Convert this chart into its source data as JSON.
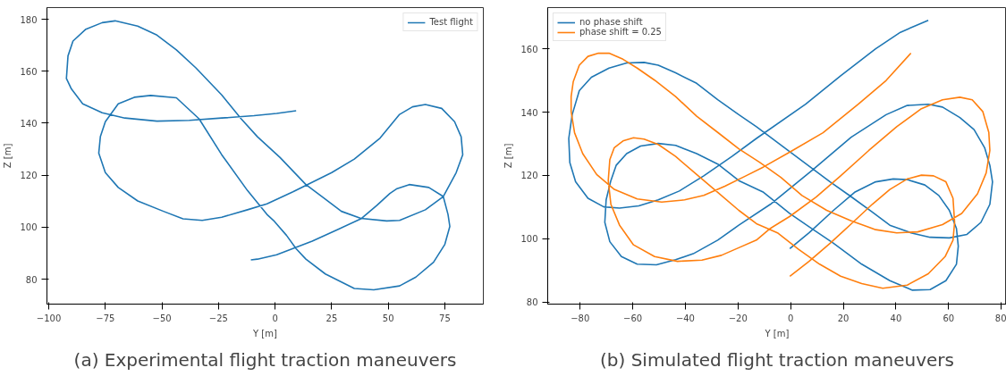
{
  "chart_data": [
    {
      "type": "line",
      "xlabel": "Y [m]",
      "ylabel": "Z [m]",
      "legend": "top right",
      "grid": false,
      "xlim": [
        -100.8,
        92
      ],
      "ylim": [
        70.4,
        184.5
      ],
      "xticks": [
        {
          "value": -100,
          "label": "−100"
        },
        {
          "value": -75,
          "label": "−75"
        },
        {
          "value": -50,
          "label": "−50"
        },
        {
          "value": -25,
          "label": "−25"
        },
        0,
        25,
        50,
        75
      ],
      "yticks": [
        80,
        100,
        120,
        140,
        160,
        180
      ],
      "annotations": [
        "(a) Experimental flight traction maneuvers"
      ],
      "series": [
        {
          "name": "Test flight",
          "color": "#1f77b4",
          "x": [
            -10.7,
            -7.8,
            0.7,
            16.4,
            27.9,
            37.9,
            45,
            50.7,
            53.6,
            59.3,
            67.9,
            74.3,
            76.4,
            77.2,
            75,
            70,
            62.2,
            55,
            43.6,
            35,
            22.2,
            13.6,
            9.3,
            5,
            -0.7,
            -3.6,
            -12.2,
            -23.6,
            -33.6,
            -43.6,
            -55,
            -62.2,
            -69.3,
            -75,
            -77.2,
            -77.9,
            -75,
            -69.3,
            -60.7,
            -49.3,
            -40.7,
            -32.2,
            -23.6,
            -12.2,
            -3.6,
            7.9,
            25,
            35,
            46.4,
            55,
            60.7,
            66.4,
            73.6,
            79.3,
            82.2,
            82.9,
            80,
            74.3,
            66.4,
            55,
            49.3,
            37.9,
            29.3,
            20.7,
            13.6,
            2.2,
            -7.8,
            -15,
            -23.6,
            -35,
            -43.6,
            -52.2,
            -60.7,
            -70.7,
            -76.4,
            -83.6,
            -89.3,
            -91.5,
            -92.2,
            -90,
            -85,
            -76.4,
            -66.4,
            -52.2,
            -37.9,
            -23.6,
            -9.3,
            0.7,
            9.3
          ],
          "values": [
            87.4,
            87.7,
            89.4,
            94.6,
            99.2,
            103.2,
            108.4,
            113,
            114.7,
            116.4,
            115.3,
            111.8,
            104.9,
            100.3,
            93.4,
            86.5,
            80.8,
            77.4,
            75.9,
            76.4,
            82,
            87.7,
            91.7,
            96.9,
            102.6,
            104.9,
            114.1,
            127.9,
            141.7,
            149.8,
            150.7,
            150,
            147.5,
            140.6,
            134.8,
            128.5,
            121,
            115.3,
            110.1,
            106.1,
            103.2,
            102.6,
            103.8,
            106.7,
            109,
            113.6,
            121,
            126.2,
            134.3,
            143.4,
            146.3,
            147.2,
            145.7,
            140.6,
            134.8,
            127.9,
            121,
            111.8,
            106.7,
            102.6,
            102.4,
            103.4,
            106.1,
            111.8,
            116.4,
            126.8,
            134.8,
            141.7,
            150.9,
            161.3,
            168.2,
            173.9,
            177.4,
            179.4,
            178.7,
            176.2,
            171.6,
            165.9,
            157.2,
            153.2,
            147.5,
            144,
            142,
            140.8,
            141.1,
            142,
            142.9,
            143.8,
            144.8
          ]
        }
      ]
    },
    {
      "type": "line",
      "xlabel": "Y [m]",
      "ylabel": "Z [m]",
      "legend": "top left",
      "grid": false,
      "xlim": [
        -92.3,
        82
      ],
      "ylim": [
        79.4,
        173
      ],
      "xticks": [
        {
          "value": -80,
          "label": "−80"
        },
        {
          "value": -60,
          "label": "−60"
        },
        {
          "value": -40,
          "label": "−40"
        },
        {
          "value": -20,
          "label": "−20"
        },
        0,
        20,
        40,
        60,
        80
      ],
      "yticks": [
        80,
        100,
        120,
        140,
        160
      ],
      "annotations": [
        "(b) Simulated flight traction maneuvers"
      ],
      "series": [
        {
          "name": "no phase shift",
          "color": "#1f77b4",
          "x": [
            -0.3,
            7,
            16.3,
            24.3,
            32.3,
            39,
            44.3,
            51,
            56.3,
            60.3,
            63,
            63.7,
            63,
            59,
            53,
            46.3,
            37.7,
            27,
            16.3,
            7,
            -0.3,
            -10.3,
            -19.7,
            -27.7,
            -35.7,
            -43.7,
            -50.3,
            -57,
            -62.3,
            -66.3,
            -68.3,
            -70.1,
            -70.6,
            -68.7,
            -64.3,
            -58.3,
            -51,
            -43.7,
            -37,
            -27.7,
            -19.7,
            -7.7,
            8.3,
            23,
            36.3,
            44.3,
            52.3,
            57.7,
            64.3,
            69.7,
            73.7,
            75.7,
            76.7,
            75.7,
            72.3,
            67,
            60.3,
            53,
            45.7,
            37.7,
            31,
            23,
            15,
            -1,
            -13,
            -19.7,
            -27.7,
            -35.7,
            -43.7,
            -50.3,
            -55.7,
            -62.3,
            -69,
            -75.7,
            -80.3,
            -83,
            -84.3,
            -83.9,
            -81.7,
            -77,
            -71,
            -65,
            -57.7,
            -50.3,
            -42.3,
            -33,
            -22.3,
            -13,
            5.7,
            19,
            32.3,
            41.7,
            52.3
          ],
          "values": [
            96.9,
            101.9,
            109,
            114.7,
            118,
            118.9,
            118.7,
            117,
            113.7,
            109,
            103.3,
            97.7,
            92,
            86.8,
            84,
            83.8,
            86.8,
            92,
            98.6,
            103.8,
            108,
            114.7,
            118.4,
            123.6,
            126.9,
            129.5,
            130.1,
            129.3,
            126.9,
            123.2,
            118.4,
            112.3,
            105.2,
            99.1,
            94.4,
            92,
            91.8,
            93.4,
            95.3,
            99.6,
            104.3,
            110.9,
            121.7,
            132.1,
            139.2,
            142.1,
            142.5,
            141.6,
            138.3,
            134.5,
            128.8,
            123.2,
            118,
            110.9,
            105.2,
            101.4,
            100.3,
            100.5,
            101.9,
            104.3,
            108.5,
            113.3,
            118,
            127.9,
            135.4,
            139.2,
            143.9,
            149.1,
            152.4,
            154.8,
            155.7,
            155.5,
            153.9,
            151,
            146.8,
            139.2,
            131.7,
            124.1,
            118,
            112.8,
            110.1,
            109.7,
            110.4,
            112.3,
            115.1,
            119.9,
            126,
            131.7,
            142.5,
            151.5,
            160,
            165.2,
            169
          ]
        },
        {
          "name": "phase shift = 0.25",
          "color": "#ff7f0e",
          "x": [
            -0.3,
            7,
            15,
            23,
            31,
            37.7,
            44.3,
            49.7,
            54.3,
            59,
            61.7,
            62.3,
            61.7,
            58.7,
            52.3,
            44.3,
            35,
            27,
            19,
            11,
            3,
            -5,
            -13,
            -19.7,
            -27.7,
            -35.7,
            -43.7,
            -50.3,
            -55.7,
            -59.7,
            -63.7,
            -67,
            -68.7,
            -69.3,
            -68.3,
            -65,
            -59.7,
            -51.7,
            -43,
            -33.7,
            -26.3,
            -19.7,
            -13,
            -7.7,
            -0.3,
            9.7,
            19,
            29.7,
            40.3,
            49.7,
            57.7,
            64.3,
            69,
            73,
            75.3,
            75.7,
            74.3,
            71,
            65,
            57.7,
            48.3,
            40.3,
            32.3,
            23,
            13.7,
            4.3,
            -3.7,
            -11.7,
            -19.7,
            -27.7,
            -35.7,
            -43.7,
            -51.7,
            -58.3,
            -63.7,
            -69,
            -73,
            -77,
            -80.3,
            -82.6,
            -83.4,
            -83.4,
            -82.1,
            -79,
            -73.7,
            -67,
            -58.3,
            -49,
            -40.3,
            -33,
            -25,
            -17,
            -10.3,
            -0.3,
            12.3,
            25.7,
            36.3,
            45.7
          ],
          "values": [
            88.2,
            92.9,
            98.6,
            104.7,
            110.9,
            115.6,
            118.9,
            120.1,
            119.9,
            118,
            112.8,
            105.2,
            99.6,
            94.4,
            89,
            85.4,
            84.4,
            85.9,
            88.2,
            92,
            96.7,
            101.9,
            104.8,
            109,
            114.7,
            120.3,
            126,
            129.8,
            131.5,
            131.9,
            130.9,
            128.8,
            125,
            118.4,
            110.9,
            104.3,
            98.1,
            94.4,
            92.9,
            93.3,
            94.8,
            97.2,
            99.6,
            103.3,
            107.1,
            113.2,
            119.9,
            127.9,
            135.4,
            141.1,
            143.9,
            144.7,
            143.9,
            140.2,
            133.6,
            127.9,
            120.8,
            114.2,
            108,
            104.5,
            102.2,
            101.9,
            102.9,
            105.7,
            109,
            113.7,
            119.4,
            124.1,
            128.4,
            133.6,
            138.7,
            144.9,
            150.1,
            153.9,
            156.7,
            158.6,
            158.6,
            157.6,
            154.8,
            149.6,
            144.9,
            140.2,
            133.5,
            126.9,
            120.3,
            115.6,
            112.6,
            111.6,
            112.3,
            113.7,
            116.6,
            119.9,
            122.7,
            127.4,
            133.5,
            142.5,
            150,
            158.6
          ]
        }
      ]
    }
  ]
}
